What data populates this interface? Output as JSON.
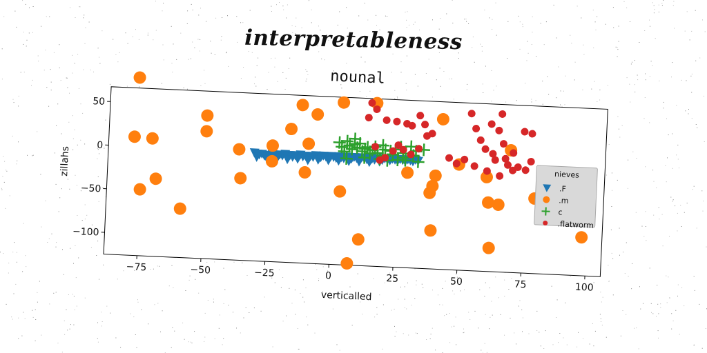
{
  "page": {
    "main_title": "interpretableness"
  },
  "chart_data": {
    "type": "scatter",
    "title": "nounal",
    "xlabel": "verticalled",
    "ylabel": "zillahs",
    "xlim": [
      -88,
      106
    ],
    "ylim": [
      -125,
      67
    ],
    "xticks": [
      -75,
      -50,
      -25,
      0,
      25,
      50,
      75,
      100
    ],
    "xtick_labels": [
      "−75",
      "−50",
      "−25",
      "0",
      "25",
      "50",
      "75",
      "100"
    ],
    "yticks": [
      50,
      0,
      -50,
      -100
    ],
    "ytick_labels": [
      "50",
      "0",
      "−50",
      "−100"
    ],
    "grid": false,
    "legend": {
      "title": "nieves",
      "placement": "center-right",
      "entries": [
        ".F",
        ".m",
        "c",
        ".flatworm"
      ]
    },
    "series": [
      {
        "name": ".F",
        "marker": "triangle-down",
        "color": "#1f77b4",
        "points": [
          [
            -31,
            -1
          ],
          [
            -30,
            -2
          ],
          [
            -29,
            -3
          ],
          [
            -28,
            -2
          ],
          [
            -27,
            -4
          ],
          [
            -26,
            -3
          ],
          [
            -25,
            -4
          ],
          [
            -24,
            -2
          ],
          [
            -23,
            -3
          ],
          [
            -22,
            -4
          ],
          [
            -21,
            -2
          ],
          [
            -20,
            -3
          ],
          [
            -19,
            -1
          ],
          [
            -18,
            -3
          ],
          [
            -17,
            -2
          ],
          [
            -16,
            -4
          ],
          [
            -15,
            -2
          ],
          [
            -14,
            -3
          ],
          [
            -13,
            -1
          ],
          [
            -12,
            -3
          ],
          [
            -11,
            -2
          ],
          [
            -10,
            -4
          ],
          [
            -9,
            -2
          ],
          [
            -8,
            -3
          ],
          [
            -7,
            -1
          ],
          [
            -6,
            -2
          ],
          [
            -5,
            -3
          ],
          [
            -4,
            -1
          ],
          [
            -3,
            -2
          ],
          [
            -2,
            -3
          ],
          [
            -1,
            -1
          ],
          [
            0,
            -2
          ],
          [
            1,
            -3
          ],
          [
            2,
            -1
          ],
          [
            3,
            -2
          ],
          [
            4,
            -3
          ],
          [
            5,
            -1
          ],
          [
            6,
            -2
          ],
          [
            7,
            -3
          ],
          [
            8,
            -1
          ],
          [
            9,
            -2
          ],
          [
            10,
            -3
          ],
          [
            11,
            -1
          ],
          [
            12,
            -2
          ],
          [
            13,
            -3
          ],
          [
            14,
            -1
          ],
          [
            15,
            -2
          ],
          [
            16,
            -3
          ],
          [
            17,
            -1
          ],
          [
            18,
            -2
          ],
          [
            19,
            -3
          ],
          [
            20,
            -1
          ],
          [
            21,
            -2
          ],
          [
            22,
            -3
          ],
          [
            23,
            -1
          ],
          [
            24,
            -2
          ],
          [
            25,
            -3
          ],
          [
            26,
            -1
          ],
          [
            27,
            -2
          ],
          [
            28,
            -3
          ],
          [
            29,
            -1
          ],
          [
            30,
            -2
          ],
          [
            31,
            -3
          ],
          [
            32,
            -1
          ],
          [
            33,
            -2
          ],
          [
            -30,
            -6
          ],
          [
            -26,
            -7
          ],
          [
            -22,
            -6
          ],
          [
            -18,
            -7
          ],
          [
            -14,
            -6
          ],
          [
            -10,
            -7
          ],
          [
            -6,
            -6
          ],
          [
            -2,
            -6
          ],
          [
            2,
            -6
          ],
          [
            6,
            -6
          ],
          [
            10,
            -6
          ],
          [
            14,
            -6
          ],
          [
            18,
            -5
          ]
        ]
      },
      {
        "name": ".m",
        "marker": "circle",
        "color": "#ff7f0e",
        "points": [
          [
            -77,
            79
          ],
          [
            -78,
            11
          ],
          [
            -71,
            10
          ],
          [
            -75,
            -49
          ],
          [
            -69,
            -36
          ],
          [
            -59,
            -69
          ],
          [
            -50,
            39
          ],
          [
            -50,
            21
          ],
          [
            -37,
            2
          ],
          [
            -36,
            -31
          ],
          [
            -24,
            8
          ],
          [
            -24,
            -10
          ],
          [
            -17,
            28
          ],
          [
            -13,
            56
          ],
          [
            -11,
            -21
          ],
          [
            -10,
            12
          ],
          [
            -7,
            46
          ],
          [
            3,
            61
          ],
          [
            3,
            -41
          ],
          [
            7,
            -123
          ],
          [
            11,
            -95
          ],
          [
            16,
            62
          ],
          [
            29,
            -16
          ],
          [
            38,
            -38
          ],
          [
            39,
            -30
          ],
          [
            40,
            -18
          ],
          [
            42,
            47
          ],
          [
            39,
            -81
          ],
          [
            49,
            -4
          ],
          [
            60,
            -17
          ],
          [
            61,
            -46
          ],
          [
            62,
            -98
          ],
          [
            65,
            -48
          ],
          [
            69,
            15
          ],
          [
            79,
            -39
          ],
          [
            98,
            -81
          ]
        ]
      },
      {
        "name": "c",
        "marker": "plus",
        "color": "#2ca02c",
        "points": [
          [
            2,
            15
          ],
          [
            3,
            10
          ],
          [
            4,
            5
          ],
          [
            5,
            17
          ],
          [
            6,
            12
          ],
          [
            7,
            8
          ],
          [
            8,
            14
          ],
          [
            9,
            10
          ],
          [
            10,
            15
          ],
          [
            11,
            6
          ],
          [
            12,
            9
          ],
          [
            13,
            11
          ],
          [
            14,
            4
          ],
          [
            15,
            8
          ],
          [
            16,
            12
          ],
          [
            17,
            5
          ],
          [
            18,
            -2
          ],
          [
            19,
            14
          ],
          [
            20,
            9
          ],
          [
            21,
            -3
          ],
          [
            22,
            8
          ],
          [
            23,
            4
          ],
          [
            24,
            10
          ],
          [
            25,
            -2
          ],
          [
            26,
            13
          ],
          [
            27,
            6
          ],
          [
            28,
            -2
          ],
          [
            30,
            14
          ],
          [
            31,
            4
          ],
          [
            32,
            9
          ],
          [
            33,
            -3
          ],
          [
            35,
            11
          ],
          [
            5,
            -3
          ],
          [
            12,
            -1
          ],
          [
            19,
            2
          ],
          [
            27,
            1
          ],
          [
            8,
            20
          ]
        ]
      },
      {
        "name": ".flatworm",
        "marker": "circle-small",
        "color": "#d62728",
        "points": [
          [
            14,
            62
          ],
          [
            13,
            45
          ],
          [
            16,
            55
          ],
          [
            20,
            43
          ],
          [
            24,
            42
          ],
          [
            28,
            40
          ],
          [
            30,
            38
          ],
          [
            33,
            50
          ],
          [
            35,
            40
          ],
          [
            36,
            27
          ],
          [
            38,
            30
          ],
          [
            16,
            12
          ],
          [
            18,
            -3
          ],
          [
            20,
            0
          ],
          [
            23,
            8
          ],
          [
            25,
            15
          ],
          [
            27,
            10
          ],
          [
            30,
            5
          ],
          [
            33,
            12
          ],
          [
            45,
            3
          ],
          [
            48,
            -3
          ],
          [
            51,
            2
          ],
          [
            53,
            55
          ],
          [
            55,
            38
          ],
          [
            57,
            25
          ],
          [
            59,
            15
          ],
          [
            61,
            44
          ],
          [
            62,
            10
          ],
          [
            63,
            3
          ],
          [
            64,
            37
          ],
          [
            65,
            56
          ],
          [
            66,
            22
          ],
          [
            67,
            5
          ],
          [
            68,
            -2
          ],
          [
            70,
            12
          ],
          [
            72,
            -4
          ],
          [
            74,
            37
          ],
          [
            75,
            -7
          ],
          [
            77,
            35
          ],
          [
            77,
            3
          ],
          [
            55,
            -5
          ],
          [
            60,
            -10
          ],
          [
            65,
            -15
          ],
          [
            70,
            -8
          ]
        ]
      }
    ]
  }
}
